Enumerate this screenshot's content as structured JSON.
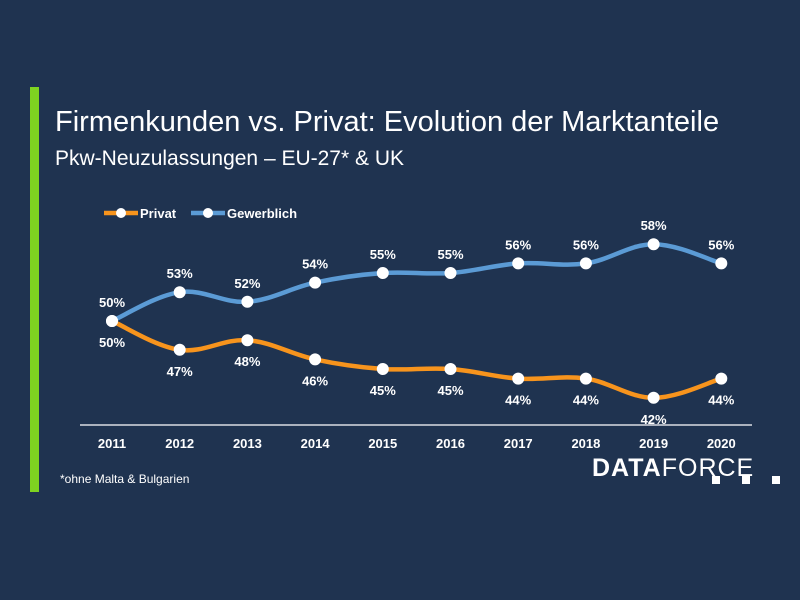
{
  "header": {
    "title": "Firmenkunden vs. Privat: Evolution der Marktanteile",
    "subtitle": "Pkw-Neuzulassungen – EU-27* & UK"
  },
  "footer": {
    "footnote": "*ohne Malta & Bulgarien",
    "logo_bold": "DATA",
    "logo_light": "FORCE"
  },
  "colors": {
    "background": "#1f3350",
    "accent": "#7ed321",
    "privat": "#f7941d",
    "gewerblich": "#5b9bd5"
  },
  "chart_data": {
    "type": "line",
    "title": "Firmenkunden vs. Privat: Evolution der Marktanteile",
    "subtitle": "Pkw-Neuzulassungen – EU-27* & UK",
    "x": [
      "2011",
      "2012",
      "2013",
      "2014",
      "2015",
      "2016",
      "2017",
      "2018",
      "2019",
      "2020"
    ],
    "series": [
      {
        "name": "Privat",
        "color": "#f7941d",
        "values": [
          50,
          47,
          48,
          46,
          45,
          45,
          44,
          44,
          42,
          44
        ],
        "labels": [
          "50%",
          "47%",
          "48%",
          "46%",
          "45%",
          "45%",
          "44%",
          "44%",
          "42%",
          "44%"
        ]
      },
      {
        "name": "Gewerblich",
        "color": "#5b9bd5",
        "values": [
          50,
          53,
          52,
          54,
          55,
          55,
          56,
          56,
          58,
          56
        ],
        "labels": [
          "50%",
          "53%",
          "52%",
          "54%",
          "55%",
          "55%",
          "56%",
          "56%",
          "58%",
          "56%"
        ]
      }
    ],
    "ylim": [
      40,
      60
    ],
    "legend": "top-left",
    "grid": false
  }
}
